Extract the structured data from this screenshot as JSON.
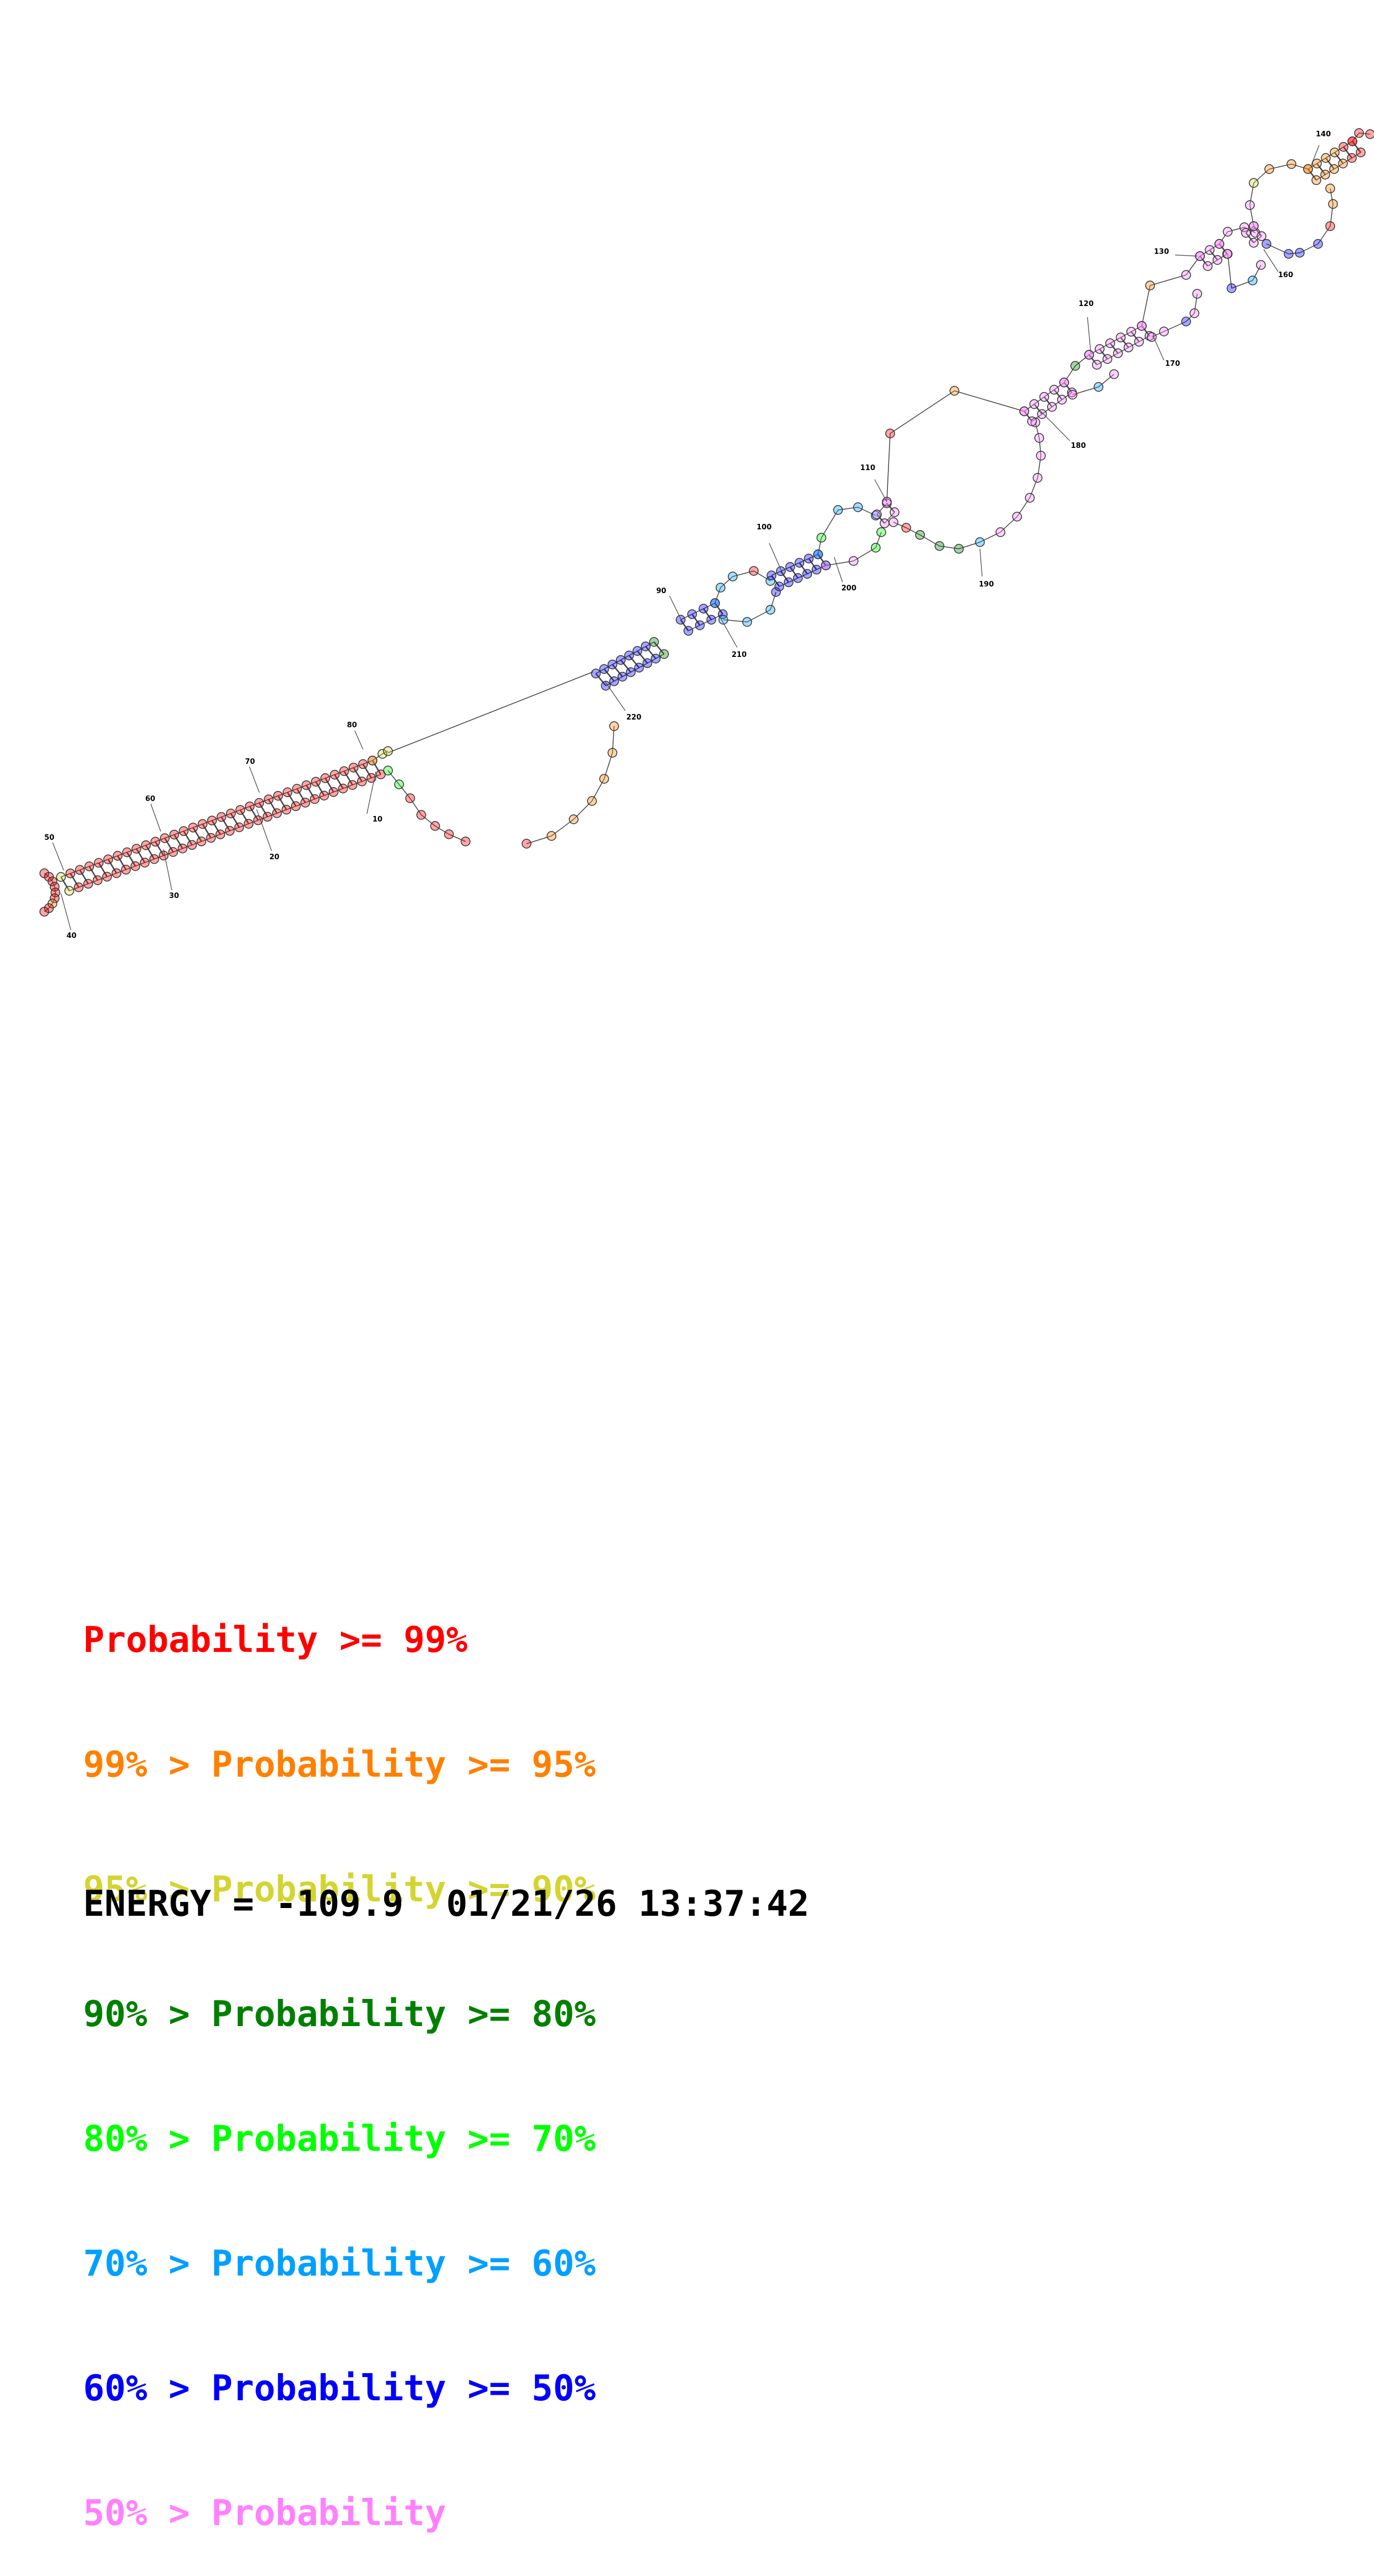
{
  "colors": {
    "p99": "#ff0000",
    "p95": "#ff8000",
    "p90": "#d4d430",
    "p80": "#008000",
    "p70": "#00ff00",
    "p60": "#00a0ff",
    "p50": "#0000ff",
    "plow": "#ff80ff"
  },
  "legend": [
    {
      "prefix": "",
      "text": "Probability >= 99%",
      "color_key": "p99"
    },
    {
      "prefix": "99% > ",
      "text": "Probability >= 95%",
      "color_key": "p95"
    },
    {
      "prefix": "95% > ",
      "text": "Probability >= 90%",
      "color_key": "p90"
    },
    {
      "prefix": "90% > ",
      "text": "Probability >= 80%",
      "color_key": "p80"
    },
    {
      "prefix": "80% > ",
      "text": "Probability >= 70%",
      "color_key": "p70"
    },
    {
      "prefix": "70% > ",
      "text": "Probability >= 60%",
      "color_key": "p60"
    },
    {
      "prefix": "60% > ",
      "text": "Probability >= 50%",
      "color_key": "p50"
    },
    {
      "prefix": "50% > ",
      "text": "Probability",
      "color_key": "plow"
    }
  ],
  "footer": {
    "energy_label": "ENERGY = ",
    "energy_value": "-109.9",
    "datetime": "01/21/26 13:37:42"
  },
  "position_labels": [
    "10",
    "20",
    "30",
    "40",
    "50",
    "60",
    "70",
    "80",
    "90",
    "100",
    "110",
    "120",
    "130",
    "140",
    "160",
    "170",
    "180",
    "190",
    "200",
    "210",
    "220"
  ]
}
